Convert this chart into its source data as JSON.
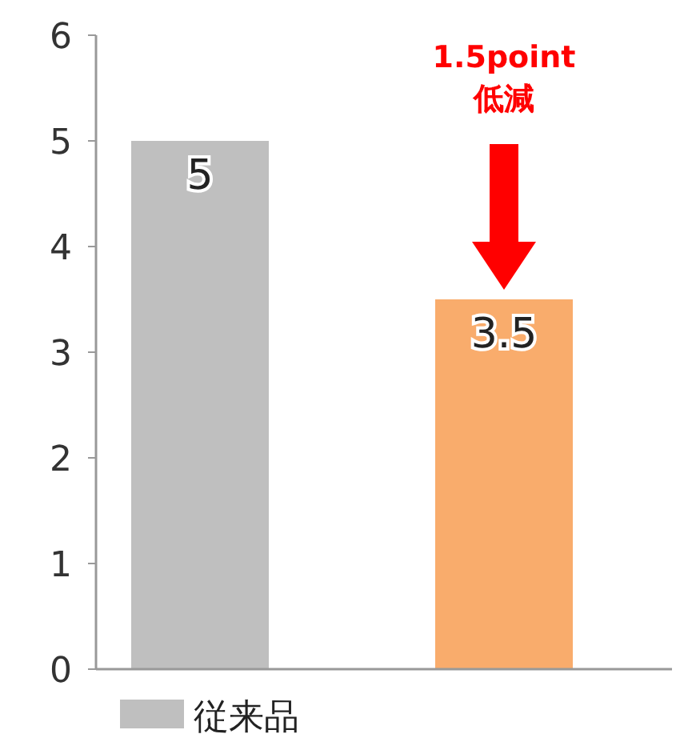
{
  "chart_data": {
    "type": "bar",
    "categories": [
      null,
      null
    ],
    "series": [
      {
        "name": "従来品",
        "color": "#bfbfbf",
        "values": [
          5,
          null
        ]
      },
      {
        "color": "#f9ac6c",
        "values": [
          null,
          3.5
        ]
      }
    ],
    "ylim": [
      0,
      6
    ],
    "yticks": [
      0,
      1,
      2,
      3,
      4,
      5,
      6
    ],
    "grid": false,
    "legend": "bottom",
    "data_labels": true,
    "annotations": [
      "1.5point\n低減"
    ]
  }
}
